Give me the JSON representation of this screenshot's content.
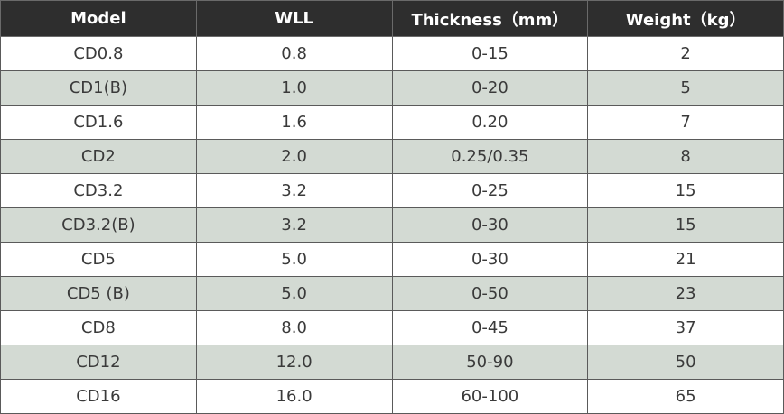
{
  "table": {
    "header": [
      "Model",
      "WLL",
      "Thickness（mm）",
      "Weight（kg）"
    ],
    "rows": [
      [
        "CD0.8",
        "0.8",
        "0-15",
        "2"
      ],
      [
        "CD1(B)",
        "1.0",
        "0-20",
        "5"
      ],
      [
        "CD1.6",
        "1.6",
        "0.20",
        "7"
      ],
      [
        "CD2",
        "2.0",
        "0.25/0.35",
        "8"
      ],
      [
        "CD3.2",
        "3.2",
        "0-25",
        "15"
      ],
      [
        "CD3.2(B)",
        "3.2",
        "0-30",
        "15"
      ],
      [
        "CD5",
        "5.0",
        "0-30",
        "21"
      ],
      [
        "CD5 (B)",
        "5.0",
        "0-50",
        "23"
      ],
      [
        "CD8",
        "8.0",
        "0-45",
        "37"
      ],
      [
        "CD12",
        "12.0",
        "50-90",
        "50"
      ],
      [
        "CD16",
        "16.0",
        "60-100",
        "65"
      ]
    ]
  }
}
